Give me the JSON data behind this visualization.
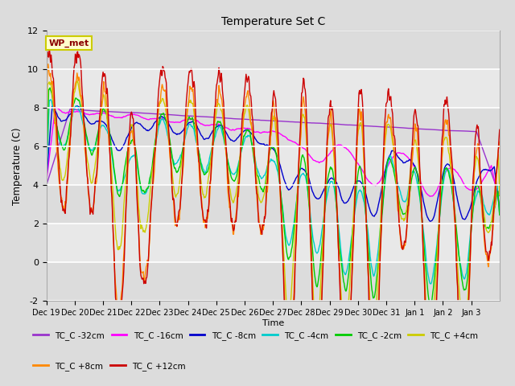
{
  "title": "Temperature Set C",
  "xlabel": "Time",
  "ylabel": "Temperature (C)",
  "ylim": [
    -2,
    12
  ],
  "yticks": [
    -2,
    0,
    2,
    4,
    6,
    8,
    10,
    12
  ],
  "wp_met_label": "WP_met",
  "legend_entries": [
    {
      "label": "TC_C -32cm",
      "color": "#9933CC"
    },
    {
      "label": "TC_C -16cm",
      "color": "#FF00FF"
    },
    {
      "label": "TC_C -8cm",
      "color": "#0000CC"
    },
    {
      "label": "TC_C -4cm",
      "color": "#00CCCC"
    },
    {
      "label": "TC_C -2cm",
      "color": "#00CC00"
    },
    {
      "label": "TC_C +4cm",
      "color": "#CCCC00"
    },
    {
      "label": "TC_C +8cm",
      "color": "#FF8800"
    },
    {
      "label": "TC_C +12cm",
      "color": "#CC0000"
    }
  ],
  "xtick_labels": [
    "Dec 19",
    "Dec 20",
    "Dec 21",
    "Dec 22",
    "Dec 23",
    "Dec 24",
    "Dec 25",
    "Dec 26",
    "Dec 27",
    "Dec 28",
    "Dec 29",
    "Dec 30",
    "Dec 31",
    "Jan 1",
    "Jan 2",
    "Jan 3"
  ],
  "fig_bg": "#DCDCDC",
  "plot_bg": "#E8E8E8",
  "grid_color": "#FFFFFF",
  "band_color": "#DCDCDC"
}
